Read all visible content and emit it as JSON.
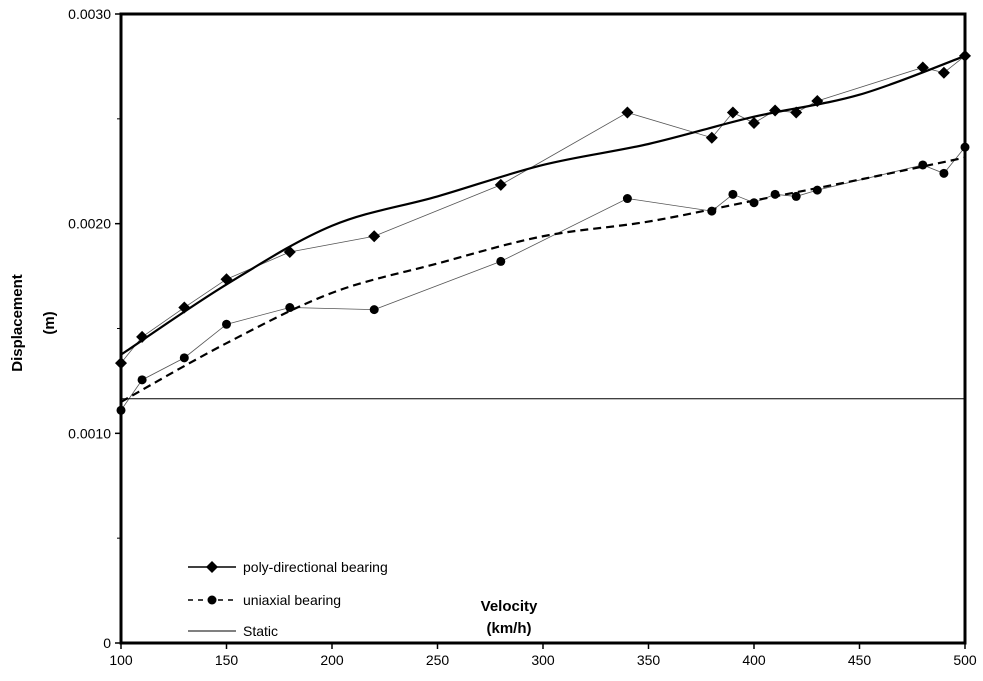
{
  "chart_data": {
    "type": "scatter",
    "xlabel": "Velocity",
    "xlabel_unit": "(km/h)",
    "ylabel": "Displacement",
    "ylabel_unit": "(m)",
    "xlim": [
      100,
      500
    ],
    "ylim": [
      0,
      0.003
    ],
    "x_ticks": [
      "100",
      "150",
      "200",
      "250",
      "300",
      "350",
      "400",
      "450",
      "500"
    ],
    "x_tick_values": [
      100,
      150,
      200,
      250,
      300,
      350,
      400,
      450,
      500
    ],
    "y_ticks": [
      "0",
      "0.0010",
      "0.0020",
      "0.0030"
    ],
    "y_tick_values": [
      0,
      0.001,
      0.002,
      0.003
    ],
    "grid": false,
    "legend_position": "bottom-left",
    "series": [
      {
        "name": "poly-directional bearing",
        "marker": "diamond",
        "line": "solid",
        "x": [
          100,
          110,
          130,
          150,
          180,
          220,
          280,
          340,
          380,
          390,
          400,
          410,
          420,
          430,
          480,
          490,
          500
        ],
        "y": [
          0.001335,
          0.00146,
          0.0016,
          0.001735,
          0.001865,
          0.00194,
          0.002185,
          0.00253,
          0.00241,
          0.00253,
          0.00248,
          0.00254,
          0.00253,
          0.002585,
          0.002745,
          0.00272,
          0.0028
        ],
        "fit": [
          [
            100,
            0.001375
          ],
          [
            150,
            0.00171
          ],
          [
            200,
            0.00199
          ],
          [
            250,
            0.00213
          ],
          [
            300,
            0.00228
          ],
          [
            350,
            0.00238
          ],
          [
            400,
            0.00251
          ],
          [
            450,
            0.002615
          ],
          [
            500,
            0.0028
          ]
        ]
      },
      {
        "name": "uniaxial bearing",
        "marker": "circle",
        "line": "dashed",
        "x": [
          100,
          110,
          130,
          150,
          180,
          220,
          280,
          340,
          380,
          390,
          400,
          410,
          420,
          430,
          480,
          490,
          500
        ],
        "y": [
          0.00111,
          0.001255,
          0.00136,
          0.00152,
          0.0016,
          0.00159,
          0.00182,
          0.00212,
          0.00206,
          0.00214,
          0.0021,
          0.00214,
          0.00213,
          0.00216,
          0.00228,
          0.00224,
          0.002365
        ],
        "fit": [
          [
            100,
            0.00115
          ],
          [
            150,
            0.00143
          ],
          [
            200,
            0.00167
          ],
          [
            250,
            0.00181
          ],
          [
            300,
            0.00194
          ],
          [
            350,
            0.00201
          ],
          [
            400,
            0.00211
          ],
          [
            450,
            0.00221
          ],
          [
            500,
            0.002315
          ]
        ]
      },
      {
        "name": "Static",
        "marker": "none",
        "line": "solid-thin",
        "x": [
          100,
          500
        ],
        "y": [
          0.001165,
          0.001165
        ]
      }
    ]
  }
}
